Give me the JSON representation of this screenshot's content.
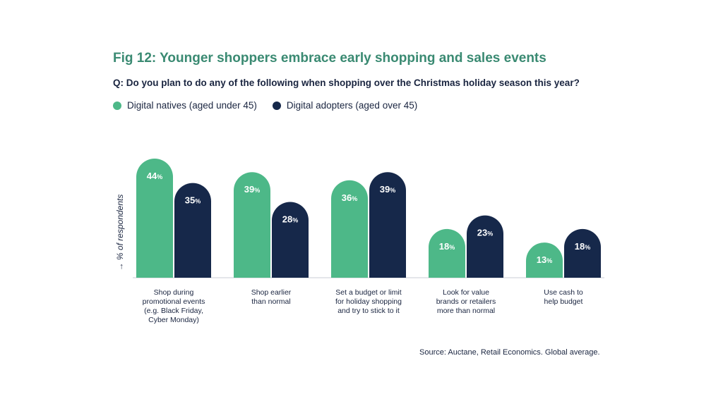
{
  "title": "Fig 12: Younger shoppers embrace early shopping and sales events",
  "question": "Q: Do you plan to do any of the following when shopping over the Christmas holiday season this year?",
  "source": "Source: Auctane, Retail Economics. Global average.",
  "colors": {
    "natives": "#4db888",
    "adopters": "#16284a",
    "title": "#3a8a72"
  },
  "chart_data": {
    "type": "bar",
    "ylabel": "→ % of respondents",
    "value_suffix": "%",
    "categories": [
      "Shop during promotional events (e.g. Black Friday, Cyber Monday)",
      "Shop earlier than normal",
      "Set a budget or limit for holiday shopping and try to stick to it",
      "Look for value brands or retailers more than normal",
      "Use cash to help budget"
    ],
    "category_lines": [
      [
        "Shop during",
        "promotional events",
        "(e.g. Black Friday,",
        "Cyber Monday)"
      ],
      [
        "Shop earlier",
        "than normal"
      ],
      [
        "Set a budget or limit",
        "for holiday shopping",
        "and try to stick to it"
      ],
      [
        "Look for value",
        "brands or retailers",
        "more than normal"
      ],
      [
        "Use cash to",
        "help budget"
      ]
    ],
    "series": [
      {
        "name": "Digital natives (aged under 45)",
        "values": [
          44,
          39,
          36,
          18,
          13
        ]
      },
      {
        "name": "Digital adopters (aged over 45)",
        "values": [
          35,
          28,
          39,
          23,
          18
        ]
      }
    ],
    "ylim": [
      0,
      50
    ],
    "grid": false,
    "legend": "top-left"
  }
}
